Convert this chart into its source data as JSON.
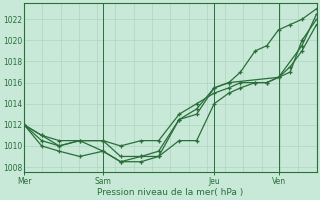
{
  "background_color": "#c8e8d8",
  "grid_color": "#b0d4c0",
  "line_color": "#2a6e3a",
  "marker_color": "#2a6e3a",
  "title": "Pression niveau de la mer( hPa )",
  "ylim": [
    1007.5,
    1023.5
  ],
  "yticks": [
    1008,
    1010,
    1012,
    1014,
    1016,
    1018,
    1020,
    1022
  ],
  "xlabel_ticks": [
    "Mer",
    "Sam",
    "Jeu",
    "Ven"
  ],
  "vline_positions": [
    0.0,
    0.27,
    0.65,
    0.87
  ],
  "series1_x": [
    0.0,
    0.06,
    0.12,
    0.19,
    0.27,
    0.33,
    0.4,
    0.46,
    0.53,
    0.59,
    0.65,
    0.7,
    0.74,
    0.79,
    0.83,
    0.87,
    0.91,
    0.95,
    1.0
  ],
  "series1_y": [
    1012,
    1011,
    1010,
    1010.5,
    1009.5,
    1008.5,
    1009,
    1009,
    1012.5,
    1013.5,
    1015.5,
    1016,
    1017,
    1019,
    1019.5,
    1021,
    1021.5,
    1022,
    1023
  ],
  "series2_x": [
    0.0,
    0.06,
    0.12,
    0.19,
    0.27,
    0.33,
    0.4,
    0.46,
    0.53,
    0.59,
    0.65,
    0.7,
    0.74,
    0.79,
    0.83,
    0.87,
    0.91,
    0.95,
    1.0
  ],
  "series2_y": [
    1012,
    1010.5,
    1010,
    1010.5,
    1010.5,
    1010,
    1010.5,
    1010.5,
    1013,
    1014,
    1015,
    1015.5,
    1016,
    1016,
    1016,
    1016.5,
    1017.5,
    1019,
    1021.5
  ],
  "series3_x": [
    0.0,
    0.06,
    0.12,
    0.19,
    0.27,
    0.33,
    0.4,
    0.46,
    0.53,
    0.59,
    0.65,
    0.7,
    0.74,
    0.79,
    0.83,
    0.87,
    0.91,
    0.95,
    1.0
  ],
  "series3_y": [
    1012,
    1010,
    1009.5,
    1009,
    1009.5,
    1008.5,
    1008.5,
    1009,
    1010.5,
    1010.5,
    1014,
    1015,
    1015.5,
    1016,
    1016,
    1016.5,
    1017,
    1020,
    1022
  ],
  "series4_x": [
    0.0,
    0.06,
    0.12,
    0.27,
    0.33,
    0.4,
    0.46,
    0.53,
    0.59,
    0.65,
    0.7,
    0.87,
    0.95,
    1.0
  ],
  "series4_y": [
    1012,
    1011,
    1010.5,
    1010.5,
    1009,
    1009,
    1009.5,
    1012.5,
    1013,
    1015.5,
    1016,
    1016.5,
    1019.5,
    1022.5
  ]
}
